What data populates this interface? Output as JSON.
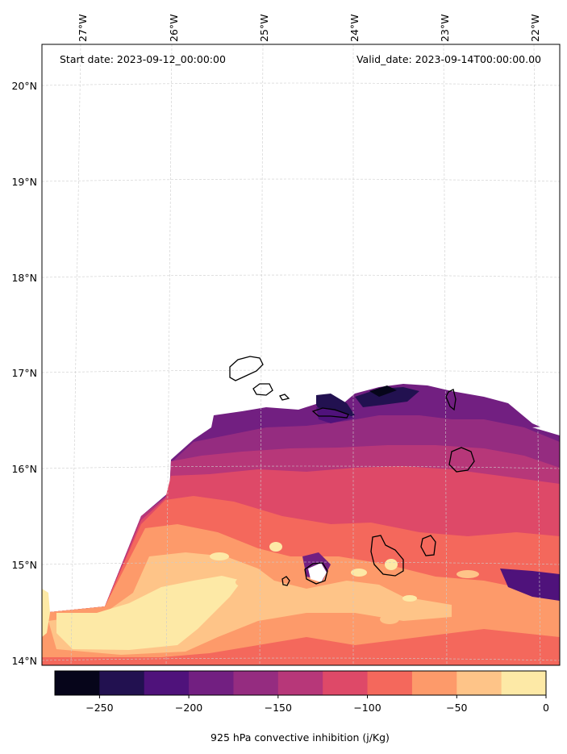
{
  "map": {
    "start_date": "Start date: 2023-09-12_00:00:00",
    "valid_date": "Valid_date: 2023-09-14T00:00:00.00",
    "lon_labels": [
      "27°W",
      "26°W",
      "25°W",
      "24°W",
      "23°W",
      "22°W"
    ],
    "lat_labels": [
      "20°N",
      "19°N",
      "18°N",
      "17°N",
      "16°N",
      "15°N",
      "14°N"
    ],
    "grid": true,
    "projection": "lambert-conformal"
  },
  "colorbar": {
    "label": "925 hPa convective inhibition (j/Kg)",
    "tick_labels": [
      "−250",
      "−200",
      "−150",
      "−100",
      "−50",
      "0"
    ],
    "levels": [
      -275,
      -250,
      -225,
      -200,
      -175,
      -150,
      -125,
      -100,
      -75,
      -50,
      -25,
      0
    ],
    "colors": [
      "#06051a",
      "#221150",
      "#4f127b",
      "#721f81",
      "#952c80",
      "#b73779",
      "#de4968",
      "#f4685c",
      "#fd9a6a",
      "#fec488",
      "#fde9a6"
    ]
  },
  "features": {
    "coastline_color": "#000000",
    "islands": [
      "Santo Antão",
      "São Vicente",
      "Santa Luzia",
      "São Nicolau",
      "Sal",
      "Boa Vista",
      "Maio",
      "Santiago",
      "Fogo",
      "Brava"
    ]
  }
}
